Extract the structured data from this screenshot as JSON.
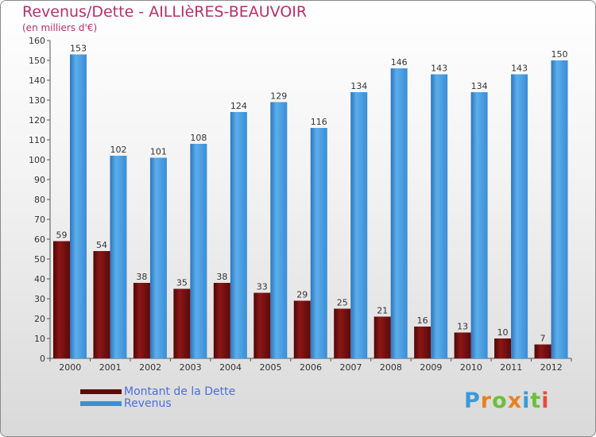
{
  "title": "Revenus/Dette - AILLIèRES-BEAUVOIR",
  "subtitle": "(en milliers d'€)",
  "chart_data": {
    "type": "bar",
    "categories": [
      "2000",
      "2001",
      "2002",
      "2003",
      "2004",
      "2005",
      "2006",
      "2007",
      "2008",
      "2009",
      "2010",
      "2011",
      "2012"
    ],
    "series": [
      {
        "name": "Montant de la Dette",
        "color": "#7a0f0f",
        "values": [
          59,
          54,
          38,
          35,
          38,
          33,
          29,
          25,
          21,
          16,
          13,
          10,
          7
        ]
      },
      {
        "name": "Revenus",
        "color": "#3c8fd6",
        "values": [
          153,
          102,
          101,
          108,
          124,
          129,
          116,
          134,
          146,
          143,
          134,
          143,
          150
        ]
      }
    ],
    "ylim": [
      0,
      160
    ],
    "yticks": [
      0,
      10,
      20,
      30,
      40,
      50,
      60,
      70,
      80,
      90,
      100,
      110,
      120,
      130,
      140,
      150,
      160
    ],
    "grid": false,
    "legend": "bottom-left"
  },
  "legend": [
    {
      "label": "Montant de la Dette",
      "color": "#5a0a0a"
    },
    {
      "label": "Revenus",
      "color": "#3c8fd6"
    }
  ],
  "logo": {
    "letters": [
      "P",
      "r",
      "o",
      "x",
      "i",
      "t",
      "i"
    ],
    "colors": [
      "#3a9ad9",
      "#e8821e",
      "#6cbf3c",
      "#e8821e",
      "#3a9ad9",
      "#6cbf3c",
      "#e84c3d"
    ]
  }
}
